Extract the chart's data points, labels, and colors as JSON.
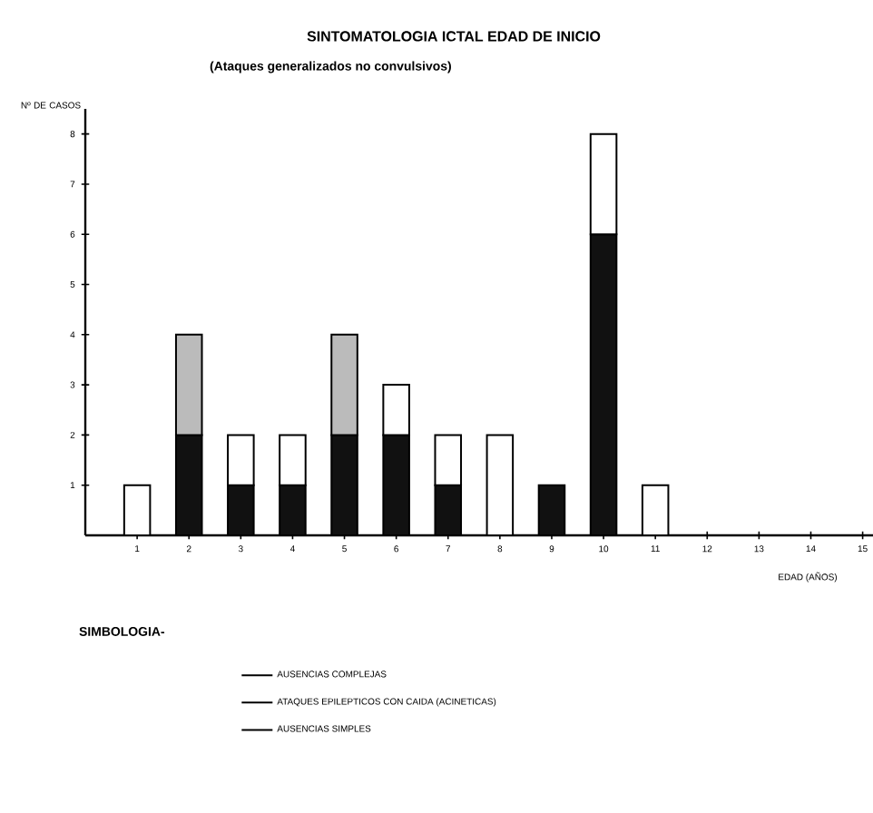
{
  "chart_data": {
    "type": "bar",
    "stacked": true,
    "title": "SINTOMATOLOGIA ICTAL EDAD DE INICIO",
    "subtitle": "(Ataques generalizados no convulsivos)",
    "ylabel": "Nº DE CASOS",
    "xlabel": "EDAD (AÑOS)",
    "legend_title": "SIMBOLOGIA-",
    "x": [
      1,
      2,
      3,
      4,
      5,
      6,
      7,
      8,
      9,
      10,
      11
    ],
    "xlim": [
      0,
      15.2
    ],
    "xticks": [
      1,
      2,
      3,
      4,
      5,
      6,
      7,
      8,
      9,
      10,
      11,
      12,
      13,
      14,
      15
    ],
    "ylim": [
      0,
      8.5
    ],
    "yticks": [
      1,
      2,
      3,
      4,
      5,
      6,
      7,
      8
    ],
    "series": [
      {
        "name": "AUSENCIAS COMPLEJAS",
        "color": "#111111",
        "values": [
          null,
          2,
          1,
          1,
          2,
          2,
          1,
          null,
          1,
          6,
          null
        ]
      },
      {
        "name": "ATAQUES EPILEPTICOS CON CAIDA (ACINETICAS)",
        "color": "#bbbbbb",
        "values": [
          null,
          2,
          null,
          null,
          2,
          null,
          null,
          null,
          null,
          null,
          null
        ]
      },
      {
        "name": "AUSENCIAS SIMPLES",
        "color": "#ffffff",
        "values": [
          1,
          null,
          1,
          1,
          null,
          1,
          1,
          2,
          null,
          2,
          1
        ]
      }
    ],
    "legend": "bottom",
    "grid": false
  }
}
